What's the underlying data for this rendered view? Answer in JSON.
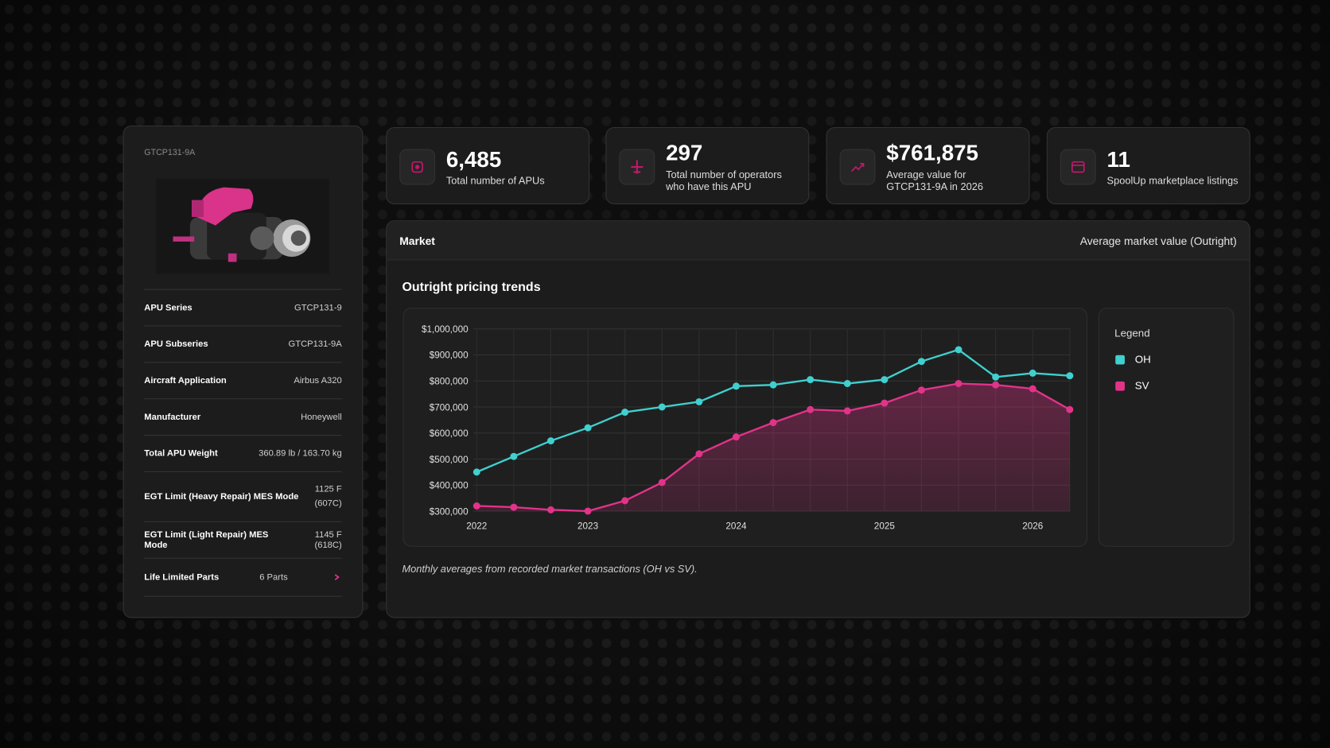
{
  "spec_card": {
    "title": "GTCP131-9A",
    "rows": [
      [
        "APU Series",
        "GTCP131-9"
      ],
      [
        "APU Subseries",
        "GTCP131-9A"
      ],
      [
        "Aircraft Application",
        "Airbus A320"
      ],
      [
        "Manufacturer",
        "Honeywell"
      ],
      [
        "Total APU Weight",
        "360.89 lb / 163.70 kg"
      ],
      [
        "EGT Limit (Heavy Repair) MES Mode",
        "1125 F (607C)"
      ],
      [
        "EGT Limit (Light Repair) MES Mode",
        "1145 F (618C)"
      ],
      [
        "Life Limited Parts",
        "6 Parts"
      ]
    ]
  },
  "kpis": [
    {
      "value": "6,485",
      "label": "Total number of APUs"
    },
    {
      "value": "297",
      "label": "Total number of operators who have this APU"
    },
    {
      "value": "$761,875",
      "label": "Average value for GTCP131-9A in 2026"
    },
    {
      "value": "11",
      "label": "SpoolUp marketplace listings"
    }
  ],
  "market": {
    "header": "Market",
    "mode": "Average market value (Outright)",
    "note": "Monthly averages from recorded market transactions (OH vs SV)."
  },
  "chart_data": {
    "type": "line",
    "title": "Outright pricing trends",
    "legend_title": "Legend",
    "grid": true,
    "categories": [
      "2022",
      null,
      null,
      "2023",
      null,
      null,
      null,
      "2024",
      null,
      null,
      null,
      "2025",
      null,
      null,
      null,
      "2026",
      null
    ],
    "series": [
      {
        "name": "OH",
        "color": "#3fd0cf",
        "area": false,
        "values": [
          450000,
          510000,
          570000,
          620000,
          680000,
          700000,
          720000,
          780000,
          785000,
          805000,
          790000,
          805000,
          875000,
          920000,
          815000,
          830000,
          820000
        ]
      },
      {
        "name": "SV",
        "color": "#e2338a",
        "area": true,
        "values": [
          320000,
          315000,
          305000,
          300000,
          340000,
          410000,
          520000,
          585000,
          640000,
          690000,
          685000,
          715000,
          765000,
          790000,
          785000,
          770000,
          690000
        ]
      }
    ],
    "ylim": [
      300000,
      1000000
    ],
    "yticks": [
      {
        "value": 300000,
        "label": "$300,000"
      },
      {
        "value": 400000,
        "label": "$400,000"
      },
      {
        "value": 500000,
        "label": "$500,000"
      },
      {
        "value": 600000,
        "label": "$600,000"
      },
      {
        "value": 700000,
        "label": "$700,000"
      },
      {
        "value": 800000,
        "label": "$800,000"
      },
      {
        "value": 900000,
        "label": "$900,000"
      },
      {
        "value": 1000000,
        "label": "$1,000,000"
      }
    ]
  }
}
